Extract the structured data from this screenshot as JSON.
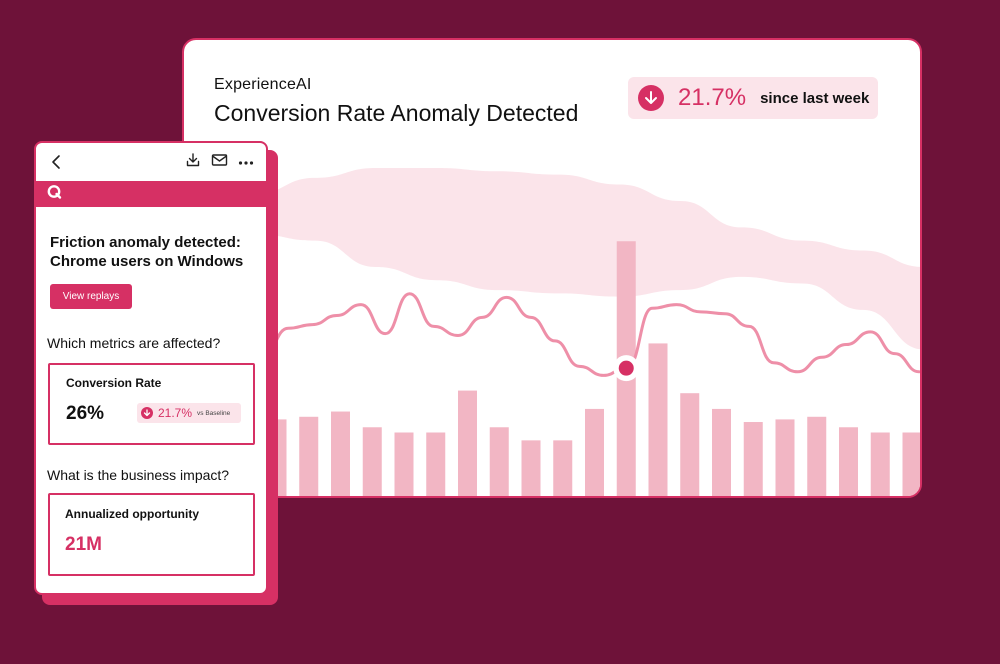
{
  "dashboard": {
    "brand": "ExperienceAI",
    "title": "Conversion Rate Anomaly Detected",
    "delta": {
      "icon": "arrow-down-circle-icon",
      "value": "21.7%",
      "label": "since last week"
    }
  },
  "colors": {
    "background": "#6e1239",
    "accent": "#d63064",
    "bar": "#f2b6c4",
    "band": "#fbe4ea",
    "line": "#ee8fa8"
  },
  "chart_data": {
    "type": "bar",
    "bars": [
      0.3,
      0.31,
      0.33,
      0.27,
      0.25,
      0.25,
      0.41,
      0.27,
      0.22,
      0.22,
      0.34,
      0.98,
      0.59,
      0.4,
      0.34,
      0.29,
      0.3,
      0.31,
      0.27,
      0.25,
      0.25
    ],
    "highlighted_index": 11,
    "line": [
      0.65,
      0.79,
      0.81,
      0.86,
      0.92,
      0.76,
      0.98,
      0.8,
      0.75,
      0.85,
      0.96,
      0.85,
      0.72,
      0.58,
      0.53,
      0.58,
      0.9,
      0.92,
      0.88,
      0.87,
      0.8,
      0.6,
      0.55,
      0.63,
      0.7,
      0.77,
      0.65,
      0.55
    ],
    "band_upper": [
      0.92,
      0.97,
      1.0,
      1.0,
      0.99,
      0.98,
      0.95,
      0.9,
      0.82,
      0.78,
      0.75,
      0.7
    ],
    "band_lower": [
      0.8,
      0.78,
      0.7,
      0.66,
      0.63,
      0.62,
      0.61,
      0.63,
      0.67,
      0.65,
      0.57,
      0.45
    ],
    "anomaly_point": {
      "index": 14,
      "value": 0.57
    },
    "title": "",
    "xlabel": "",
    "ylabel": ""
  },
  "mobile": {
    "toolbar": {
      "back_icon": "chevron-left-icon",
      "icons": [
        "download-icon",
        "mail-icon",
        "more-icon"
      ]
    },
    "brand_icon": "q-logo-icon",
    "heading": "Friction anomaly detected: Chrome users on Windows",
    "button_label": "View replays",
    "question_metrics": "Which metrics are affected?",
    "metric": {
      "label": "Conversion Rate",
      "value": "26%",
      "delta": "21.7%",
      "baseline_label": "vs Baseline"
    },
    "question_impact": "What is the business impact?",
    "impact": {
      "label": "Annualized opportunity",
      "value": "21M"
    }
  }
}
